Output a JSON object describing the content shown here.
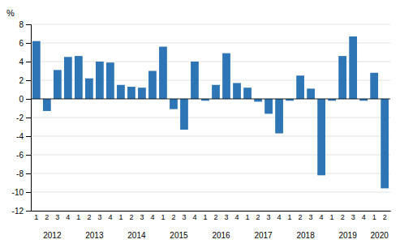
{
  "chart_data": {
    "type": "bar",
    "ylabel": "%",
    "categories": [
      "1",
      "2",
      "3",
      "4",
      "1",
      "2",
      "3",
      "4",
      "1",
      "2",
      "3",
      "4",
      "1",
      "2",
      "3",
      "4",
      "1",
      "2",
      "3",
      "4",
      "1",
      "2",
      "3",
      "4",
      "1",
      "2",
      "3",
      "4",
      "1",
      "2",
      "3",
      "4",
      "1",
      "2"
    ],
    "values": [
      6.2,
      -1.3,
      3.1,
      4.5,
      4.6,
      2.2,
      4.0,
      3.9,
      1.5,
      1.3,
      1.2,
      3.0,
      5.6,
      -1.1,
      -3.3,
      4.0,
      -0.2,
      1.5,
      4.9,
      1.7,
      1.2,
      -0.3,
      -1.6,
      -3.7,
      -0.2,
      2.5,
      1.1,
      -8.2,
      -0.2,
      4.6,
      6.7,
      -0.2,
      2.8,
      -9.6
    ],
    "annotations": [
      "2012",
      "2013",
      "2014",
      "2015",
      "2016",
      "2017",
      "2018",
      "2019",
      "2020"
    ],
    "color": "#2E75B6",
    "ylim": [
      -12,
      8
    ],
    "yticks": [
      -12,
      -10,
      -8,
      -6,
      -4,
      -2,
      0,
      2,
      4,
      6,
      8
    ],
    "grid": true
  }
}
